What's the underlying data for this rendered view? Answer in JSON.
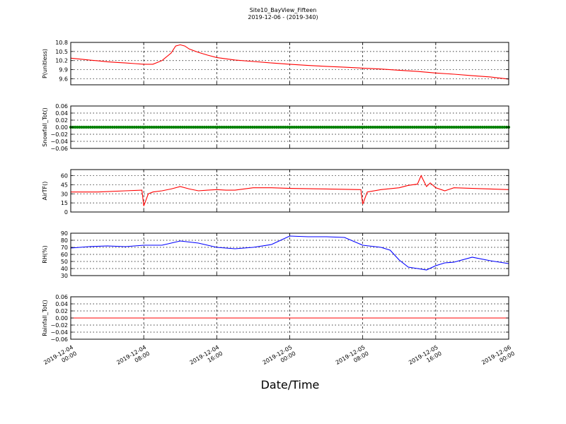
{
  "title": "Site10_BayView_Fifteen",
  "subtitle": "2019-12-06 - (2019-340)",
  "xlabel": "Date/Time",
  "x_ticks": [
    {
      "hours": 0,
      "line1": "2019-12-04",
      "line2": "00:00"
    },
    {
      "hours": 8,
      "line1": "2019-12-04",
      "line2": "08:00"
    },
    {
      "hours": 16,
      "line1": "2019-12-04",
      "line2": "16:00"
    },
    {
      "hours": 24,
      "line1": "2019-12-05",
      "line2": "00:00"
    },
    {
      "hours": 32,
      "line1": "2019-12-05",
      "line2": "08:00"
    },
    {
      "hours": 40,
      "line1": "2019-12-05",
      "line2": "16:00"
    },
    {
      "hours": 48,
      "line1": "2019-12-06",
      "line2": "00:00"
    }
  ],
  "chart_data": [
    {
      "type": "line",
      "ylabel": "P(unitless)",
      "ylim": [
        9.4,
        10.8
      ],
      "yticks": [
        "10.8",
        "10.5",
        "10.2",
        "9.9",
        "9.6"
      ],
      "ytick_values": [
        10.8,
        10.5,
        10.2,
        9.9,
        9.6
      ],
      "grid": true,
      "series": [
        {
          "color": "#ff0000",
          "x": [
            "2019-12-04 00:00",
            "2019-12-04 01:00",
            "2019-12-04 02:00",
            "2019-12-04 03:00",
            "2019-12-04 04:00",
            "2019-12-04 05:00",
            "2019-12-04 06:00",
            "2019-12-04 07:00",
            "2019-12-04 08:00",
            "2019-12-04 09:00",
            "2019-12-04 10:00",
            "2019-12-04 11:00",
            "2019-12-04 11:30",
            "2019-12-04 12:00",
            "2019-12-04 12:30",
            "2019-12-04 13:00",
            "2019-12-04 14:00",
            "2019-12-04 15:00",
            "2019-12-04 16:00",
            "2019-12-04 18:00",
            "2019-12-04 20:00",
            "2019-12-04 22:00",
            "2019-12-05 00:00",
            "2019-12-05 02:00",
            "2019-12-05 04:00",
            "2019-12-05 06:00",
            "2019-12-05 08:00",
            "2019-12-05 10:00",
            "2019-12-05 12:00",
            "2019-12-05 14:00",
            "2019-12-05 16:00",
            "2019-12-05 18:00",
            "2019-12-05 20:00",
            "2019-12-05 22:00",
            "2019-12-06 00:00"
          ],
          "values": [
            10.28,
            10.25,
            10.22,
            10.19,
            10.16,
            10.14,
            10.12,
            10.1,
            10.08,
            10.08,
            10.2,
            10.45,
            10.68,
            10.72,
            10.68,
            10.58,
            10.47,
            10.38,
            10.3,
            10.22,
            10.17,
            10.12,
            10.08,
            10.04,
            10.01,
            9.98,
            9.95,
            9.92,
            9.88,
            9.84,
            9.79,
            9.75,
            9.7,
            9.66,
            9.59
          ]
        }
      ]
    },
    {
      "type": "scatter",
      "ylabel": "Snowfall_Tot()",
      "ylim": [
        -0.06,
        0.06
      ],
      "yticks": [
        "0.06",
        "0.04",
        "0.02",
        "0.00",
        "−0.02",
        "−0.04",
        "−0.06"
      ],
      "ytick_values": [
        0.06,
        0.04,
        0.02,
        0,
        -0.02,
        -0.04,
        -0.06
      ],
      "grid": true,
      "series": [
        {
          "color": "#008000",
          "x_range": [
            "2019-12-04 00:00",
            "2019-12-06 00:00"
          ],
          "constant_value": 0.0
        }
      ]
    },
    {
      "type": "line",
      "ylabel": "AirTF()",
      "ylim": [
        0,
        70
      ],
      "yticks": [
        "60",
        "45",
        "30",
        "15",
        "0"
      ],
      "ytick_values": [
        60,
        45,
        30,
        15,
        0
      ],
      "grid": true,
      "series": [
        {
          "color": "#ff0000",
          "x": [
            "2019-12-04 00:00",
            "2019-12-04 03:00",
            "2019-12-04 06:00",
            "2019-12-04 07:48",
            "2019-12-04 08:00",
            "2019-12-04 08:30",
            "2019-12-04 09:00",
            "2019-12-04 10:00",
            "2019-12-04 11:00",
            "2019-12-04 12:00",
            "2019-12-04 13:00",
            "2019-12-04 14:00",
            "2019-12-04 15:00",
            "2019-12-04 16:00",
            "2019-12-04 17:00",
            "2019-12-04 18:00",
            "2019-12-04 20:00",
            "2019-12-04 22:00",
            "2019-12-05 00:00",
            "2019-12-05 04:00",
            "2019-12-05 07:48",
            "2019-12-05 08:00",
            "2019-12-05 08:30",
            "2019-12-05 10:00",
            "2019-12-05 12:00",
            "2019-12-05 13:00",
            "2019-12-05 14:00",
            "2019-12-05 14:24",
            "2019-12-05 15:00",
            "2019-12-05 15:24",
            "2019-12-05 16:00",
            "2019-12-05 17:00",
            "2019-12-05 18:00",
            "2019-12-05 20:00",
            "2019-12-05 22:00",
            "2019-12-06 00:00"
          ],
          "values": [
            33,
            33,
            35,
            36,
            10,
            30,
            33,
            35,
            38,
            42,
            38,
            35,
            36,
            37,
            36,
            36,
            40,
            40,
            39,
            38,
            37,
            13,
            33,
            37,
            40,
            44,
            46,
            60,
            42,
            48,
            40,
            35,
            40,
            39,
            38,
            37
          ]
        }
      ]
    },
    {
      "type": "line",
      "ylabel": "RH(%)",
      "ylim": [
        30,
        90
      ],
      "yticks": [
        "90",
        "80",
        "70",
        "60",
        "50",
        "40",
        "30"
      ],
      "ytick_values": [
        90,
        80,
        70,
        60,
        50,
        40,
        30
      ],
      "grid": true,
      "series": [
        {
          "color": "#0000ff",
          "x": [
            "2019-12-04 00:00",
            "2019-12-04 02:00",
            "2019-12-04 04:00",
            "2019-12-04 06:00",
            "2019-12-04 08:00",
            "2019-12-04 10:00",
            "2019-12-04 12:00",
            "2019-12-04 14:00",
            "2019-12-04 16:00",
            "2019-12-04 18:00",
            "2019-12-04 20:00",
            "2019-12-04 22:00",
            "2019-12-05 00:00",
            "2019-12-05 02:00",
            "2019-12-05 04:00",
            "2019-12-05 06:00",
            "2019-12-05 08:00",
            "2019-12-05 10:00",
            "2019-12-05 11:00",
            "2019-12-05 12:00",
            "2019-12-05 13:00",
            "2019-12-05 14:00",
            "2019-12-05 15:00",
            "2019-12-05 16:00",
            "2019-12-05 17:00",
            "2019-12-05 18:00",
            "2019-12-05 20:00",
            "2019-12-05 22:00",
            "2019-12-06 00:00"
          ],
          "values": [
            69,
            71,
            72,
            71,
            73,
            73,
            79,
            76,
            70,
            68,
            70,
            74,
            86,
            85,
            85,
            84,
            73,
            70,
            66,
            52,
            42,
            40,
            38,
            44,
            48,
            49,
            56,
            51,
            47
          ]
        }
      ]
    },
    {
      "type": "line",
      "ylabel": "Rainfall_Tot()",
      "ylim": [
        -0.06,
        0.06
      ],
      "yticks": [
        "0.06",
        "0.04",
        "0.02",
        "0.00",
        "−0.02",
        "−0.04",
        "−0.06"
      ],
      "ytick_values": [
        0.06,
        0.04,
        0.02,
        0,
        -0.02,
        -0.04,
        -0.06
      ],
      "grid": true,
      "series": [
        {
          "color": "#ff0000",
          "x": [
            "2019-12-04 00:00",
            "2019-12-06 00:00"
          ],
          "values": [
            0,
            0
          ]
        }
      ]
    }
  ]
}
